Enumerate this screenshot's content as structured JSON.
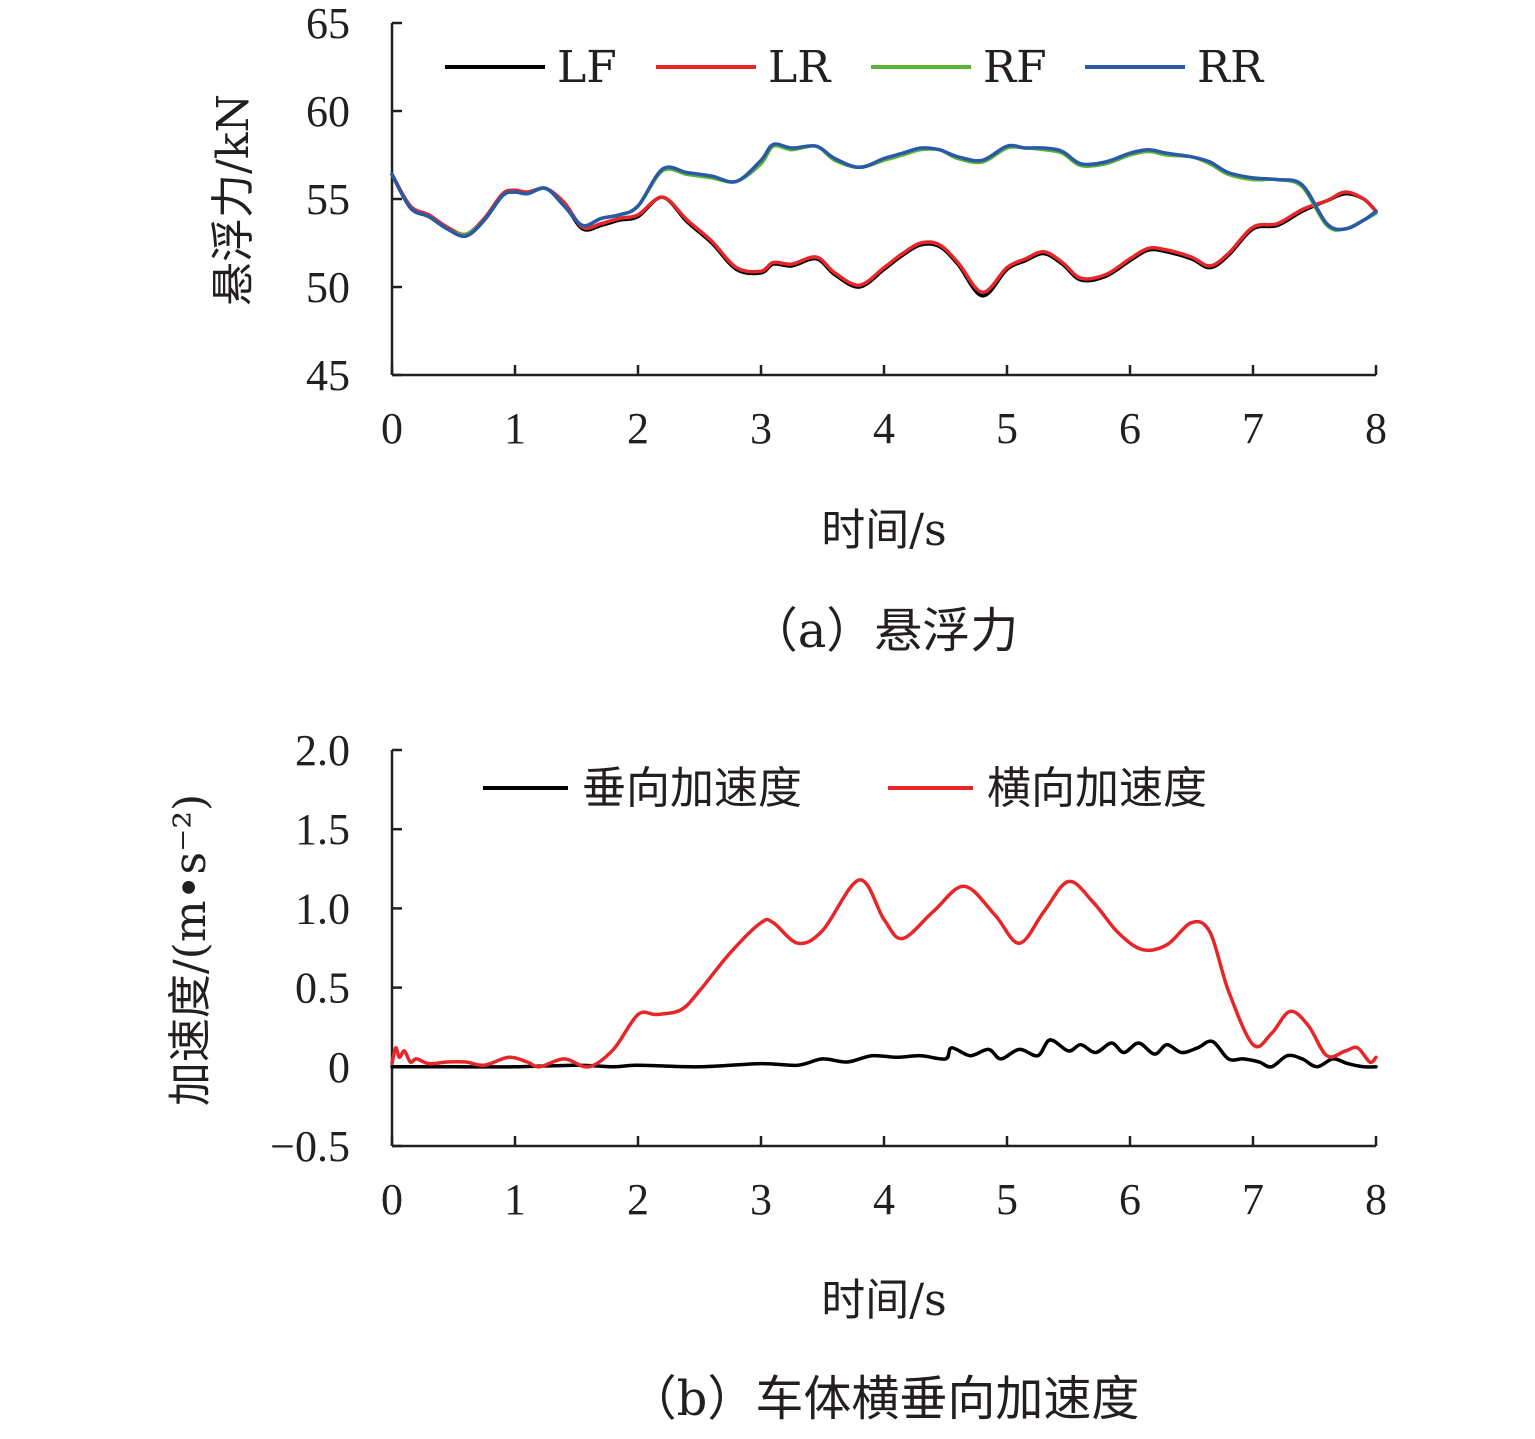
{
  "chart_data": [
    {
      "type": "line",
      "caption": "（a）悬浮力",
      "xlabel": "时间/s",
      "ylabel": "悬浮力/kN",
      "xlim": [
        0,
        8
      ],
      "ylim": [
        45,
        65
      ],
      "xticks": [
        0,
        1,
        2,
        3,
        4,
        5,
        6,
        7,
        8
      ],
      "yticks": [
        45,
        50,
        55,
        60,
        65
      ],
      "xtick_labels": [
        "0",
        "1",
        "2",
        "3",
        "4",
        "5",
        "6",
        "7",
        "8"
      ],
      "ytick_labels": [
        "45",
        "50",
        "55",
        "60",
        "65"
      ],
      "grid": false,
      "legend_position": "top",
      "series": [
        {
          "name": "LF",
          "color": "#000000",
          "x": [
            0,
            0.15,
            0.3,
            0.45,
            0.6,
            0.75,
            0.9,
            1.0,
            1.1,
            1.25,
            1.4,
            1.55,
            1.7,
            1.85,
            2.0,
            2.2,
            2.4,
            2.6,
            2.8,
            3.0,
            3.1,
            3.25,
            3.45,
            3.6,
            3.8,
            4.0,
            4.15,
            4.3,
            4.45,
            4.6,
            4.8,
            5.0,
            5.15,
            5.3,
            5.45,
            5.6,
            5.8,
            6.0,
            6.15,
            6.3,
            6.5,
            6.65,
            6.8,
            7.0,
            7.2,
            7.4,
            7.6,
            7.75,
            7.9,
            8.0
          ],
          "y": [
            56.4,
            54.5,
            54.0,
            53.3,
            52.9,
            53.8,
            55.2,
            55.4,
            55.3,
            55.6,
            54.7,
            53.3,
            53.5,
            53.8,
            54.0,
            55.1,
            53.7,
            52.5,
            51.0,
            50.8,
            51.3,
            51.2,
            51.6,
            50.7,
            50.0,
            51.0,
            51.8,
            52.4,
            52.3,
            51.3,
            49.5,
            51.0,
            51.5,
            51.9,
            51.3,
            50.4,
            50.6,
            51.5,
            52.1,
            52.0,
            51.6,
            51.1,
            51.8,
            53.3,
            53.5,
            54.3,
            54.9,
            55.3,
            55.0,
            54.3
          ]
        },
        {
          "name": "LR",
          "color": "#e8262a",
          "x": [
            0,
            0.15,
            0.3,
            0.45,
            0.6,
            0.75,
            0.9,
            1.0,
            1.1,
            1.25,
            1.4,
            1.55,
            1.7,
            1.85,
            2.0,
            2.2,
            2.4,
            2.6,
            2.8,
            3.0,
            3.1,
            3.25,
            3.45,
            3.6,
            3.8,
            4.0,
            4.15,
            4.3,
            4.45,
            4.6,
            4.8,
            5.0,
            5.15,
            5.3,
            5.45,
            5.6,
            5.8,
            6.0,
            6.15,
            6.3,
            6.5,
            6.65,
            6.8,
            7.0,
            7.2,
            7.4,
            7.6,
            7.75,
            7.9,
            8.0
          ],
          "y": [
            56.4,
            54.6,
            54.1,
            53.4,
            53.0,
            53.9,
            55.3,
            55.5,
            55.4,
            55.6,
            54.8,
            53.4,
            53.6,
            53.9,
            54.1,
            55.1,
            53.8,
            52.6,
            51.1,
            50.9,
            51.4,
            51.3,
            51.7,
            50.8,
            50.1,
            51.1,
            51.9,
            52.5,
            52.4,
            51.4,
            49.7,
            51.1,
            51.6,
            52.0,
            51.4,
            50.5,
            50.7,
            51.6,
            52.2,
            52.1,
            51.7,
            51.2,
            51.9,
            53.4,
            53.6,
            54.4,
            54.9,
            55.4,
            55.0,
            54.3
          ]
        },
        {
          "name": "RF",
          "color": "#5ab534",
          "x": [
            0,
            0.15,
            0.3,
            0.45,
            0.6,
            0.75,
            0.9,
            1.0,
            1.1,
            1.25,
            1.4,
            1.55,
            1.7,
            1.85,
            2.0,
            2.2,
            2.4,
            2.6,
            2.8,
            3.0,
            3.1,
            3.25,
            3.45,
            3.6,
            3.8,
            4.0,
            4.15,
            4.3,
            4.45,
            4.6,
            4.8,
            5.0,
            5.15,
            5.3,
            5.45,
            5.6,
            5.8,
            6.0,
            6.15,
            6.3,
            6.5,
            6.65,
            6.8,
            7.0,
            7.2,
            7.4,
            7.6,
            7.75,
            7.9,
            8.0
          ],
          "y": [
            56.4,
            54.5,
            54.0,
            53.3,
            53.0,
            53.8,
            55.2,
            55.4,
            55.3,
            55.6,
            54.6,
            53.5,
            53.9,
            54.1,
            54.6,
            56.6,
            56.4,
            56.2,
            56.0,
            57.0,
            58.0,
            57.8,
            58.0,
            57.2,
            56.8,
            57.2,
            57.5,
            57.8,
            57.8,
            57.3,
            57.1,
            57.9,
            57.9,
            57.8,
            57.6,
            56.9,
            57.0,
            57.5,
            57.7,
            57.5,
            57.4,
            57.0,
            56.4,
            56.1,
            56.1,
            55.7,
            53.5,
            53.3,
            53.8,
            54.2
          ]
        },
        {
          "name": "RR",
          "color": "#2a59a8",
          "x": [
            0,
            0.15,
            0.3,
            0.45,
            0.6,
            0.75,
            0.9,
            1.0,
            1.1,
            1.25,
            1.4,
            1.55,
            1.7,
            1.85,
            2.0,
            2.2,
            2.4,
            2.6,
            2.8,
            3.0,
            3.1,
            3.25,
            3.45,
            3.6,
            3.8,
            4.0,
            4.15,
            4.3,
            4.45,
            4.6,
            4.8,
            5.0,
            5.15,
            5.3,
            5.45,
            5.6,
            5.8,
            6.0,
            6.15,
            6.3,
            6.5,
            6.65,
            6.8,
            7.0,
            7.2,
            7.4,
            7.6,
            7.75,
            7.9,
            8.0
          ],
          "y": [
            56.4,
            54.5,
            54.0,
            53.3,
            52.9,
            53.8,
            55.2,
            55.4,
            55.3,
            55.6,
            54.6,
            53.5,
            53.9,
            54.1,
            54.6,
            56.7,
            56.5,
            56.3,
            56.0,
            57.2,
            58.1,
            57.9,
            58.0,
            57.3,
            56.8,
            57.3,
            57.6,
            57.9,
            57.8,
            57.4,
            57.2,
            58.0,
            57.9,
            57.9,
            57.7,
            57.0,
            57.1,
            57.6,
            57.8,
            57.6,
            57.4,
            57.1,
            56.5,
            56.2,
            56.1,
            55.8,
            53.6,
            53.3,
            53.8,
            54.3
          ]
        }
      ]
    },
    {
      "type": "line",
      "caption": "（b）车体横垂向加速度",
      "xlabel": "时间/s",
      "ylabel": "加速度/(m•s⁻²)",
      "xlim": [
        0,
        8
      ],
      "ylim": [
        -0.5,
        2.0
      ],
      "xticks": [
        0,
        1,
        2,
        3,
        4,
        5,
        6,
        7,
        8
      ],
      "yticks": [
        -0.5,
        0,
        0.5,
        1.0,
        1.5,
        2.0
      ],
      "xtick_labels": [
        "0",
        "1",
        "2",
        "3",
        "4",
        "5",
        "6",
        "7",
        "8"
      ],
      "ytick_labels": [
        "−0.5",
        "0",
        "0.5",
        "1.0",
        "1.5",
        "2.0"
      ],
      "grid": false,
      "legend_position": "top",
      "series": [
        {
          "name": "垂向加速度",
          "color": "#000000",
          "x": [
            0,
            0.5,
            1.0,
            1.5,
            1.8,
            2.0,
            2.5,
            3.0,
            3.3,
            3.5,
            3.7,
            3.9,
            4.1,
            4.3,
            4.5,
            4.55,
            4.7,
            4.85,
            4.95,
            5.1,
            5.25,
            5.35,
            5.5,
            5.6,
            5.72,
            5.85,
            5.95,
            6.07,
            6.2,
            6.3,
            6.42,
            6.55,
            6.67,
            6.8,
            6.92,
            7.05,
            7.15,
            7.28,
            7.4,
            7.52,
            7.65,
            7.77,
            7.9,
            8.0
          ],
          "y": [
            0.0,
            0.0,
            0.0,
            0.01,
            0.0,
            0.01,
            0.0,
            0.02,
            0.01,
            0.05,
            0.03,
            0.07,
            0.06,
            0.07,
            0.05,
            0.12,
            0.07,
            0.11,
            0.05,
            0.11,
            0.07,
            0.17,
            0.1,
            0.14,
            0.09,
            0.15,
            0.09,
            0.15,
            0.08,
            0.14,
            0.09,
            0.12,
            0.16,
            0.05,
            0.05,
            0.03,
            0.0,
            0.07,
            0.05,
            0.0,
            0.05,
            0.02,
            0.0,
            0.0
          ]
        },
        {
          "name": "横向加速度",
          "color": "#e8262a",
          "x": [
            0,
            0.03,
            0.06,
            0.1,
            0.15,
            0.2,
            0.3,
            0.45,
            0.6,
            0.75,
            0.95,
            1.1,
            1.2,
            1.4,
            1.6,
            1.8,
            2.0,
            2.15,
            2.35,
            2.5,
            2.75,
            3.0,
            3.1,
            3.3,
            3.5,
            3.8,
            4.0,
            4.15,
            4.4,
            4.65,
            4.9,
            5.1,
            5.3,
            5.5,
            5.7,
            5.9,
            6.1,
            6.3,
            6.5,
            6.65,
            6.8,
            7.0,
            7.15,
            7.3,
            7.45,
            7.6,
            7.75,
            7.85,
            7.95,
            8.0
          ],
          "y": [
            0.02,
            0.12,
            0.06,
            0.1,
            0.03,
            0.05,
            0.02,
            0.03,
            0.03,
            0.01,
            0.06,
            0.03,
            0.0,
            0.05,
            0.0,
            0.11,
            0.33,
            0.33,
            0.36,
            0.48,
            0.72,
            0.91,
            0.91,
            0.78,
            0.86,
            1.18,
            0.93,
            0.81,
            0.98,
            1.14,
            0.96,
            0.78,
            0.98,
            1.17,
            1.04,
            0.85,
            0.74,
            0.77,
            0.91,
            0.85,
            0.48,
            0.14,
            0.21,
            0.35,
            0.26,
            0.07,
            0.1,
            0.12,
            0.03,
            0.06
          ]
        }
      ]
    }
  ]
}
